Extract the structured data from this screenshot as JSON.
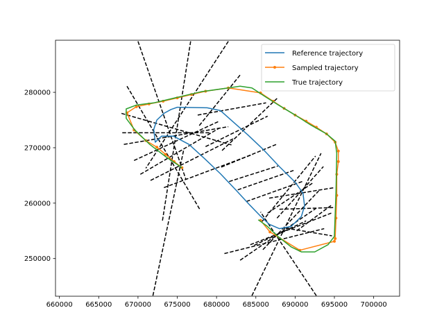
{
  "chart_data": {
    "type": "line",
    "title": "",
    "xlabel": "",
    "ylabel": "",
    "xlim": [
      659500,
      703300
    ],
    "ylim": [
      243200,
      289400
    ],
    "xticks": [
      660000,
      665000,
      670000,
      675000,
      680000,
      685000,
      690000,
      695000,
      700000
    ],
    "yticks": [
      250000,
      260000,
      270000,
      280000
    ],
    "grid": false,
    "legend_position": "top-right",
    "series": [
      {
        "name": "Reference trajectory",
        "color": "#1f77b4",
        "marker": "none",
        "closed": true,
        "x": [
          675000,
          678800,
          680500,
          682000,
          684000,
          686000,
          688000,
          690000,
          691000,
          691200,
          690800,
          689500,
          688000,
          686700,
          685500,
          684200,
          682500,
          680500,
          678500,
          676500,
          674500,
          673000,
          672200,
          672000,
          672400,
          673300,
          674200,
          675000
        ],
        "y": [
          277300,
          277200,
          276700,
          274800,
          272300,
          269600,
          266600,
          263800,
          261800,
          259500,
          257600,
          255800,
          255400,
          256200,
          257800,
          259700,
          262300,
          265300,
          268000,
          270600,
          272100,
          272100,
          271000,
          273300,
          275000,
          276200,
          276900,
          277300
        ]
      },
      {
        "name": "Sampled trajectory",
        "color": "#ff7f0e",
        "marker": "circle",
        "x": [
          675600,
          674600,
          673500,
          672400,
          671000,
          669500,
          668600,
          669800,
          671400,
          673200,
          675000,
          676800,
          678600,
          681500,
          685600,
          687200,
          688600,
          690000,
          691400,
          692700,
          694000,
          695100,
          695500,
          695500,
          695300,
          695300,
          695200,
          695100,
          695000,
          690600,
          686800,
          685600
        ],
        "y": [
          266400,
          267500,
          268800,
          270100,
          271300,
          273200,
          276300,
          277400,
          277900,
          278400,
          279000,
          279600,
          280200,
          280800,
          279900,
          278400,
          277100,
          275900,
          274800,
          273700,
          272500,
          271000,
          269400,
          267500,
          265200,
          261400,
          257300,
          253600,
          253100,
          251500,
          254800,
          256900
        ]
      },
      {
        "name": "True trajectory",
        "color": "#2ca02c",
        "marker": "none",
        "x": [
          675600,
          673600,
          671500,
          669600,
          668500,
          668500,
          669800,
          672000,
          675000,
          678000,
          681500,
          683000,
          684500,
          686000,
          688000,
          690000,
          692000,
          694000,
          695100,
          695300,
          695200,
          695000,
          694200,
          692500,
          690800,
          689500,
          687800,
          686400,
          685300
        ],
        "y": [
          266400,
          268300,
          270600,
          273200,
          275300,
          277000,
          277700,
          278100,
          279100,
          280100,
          280800,
          281100,
          280800,
          279400,
          277600,
          275900,
          274100,
          272500,
          271200,
          269000,
          262000,
          254000,
          252500,
          251200,
          251200,
          252100,
          254000,
          255900,
          257000
        ]
      }
    ],
    "dashed_lines": [
      [
        [
          668600,
          281100
        ],
        [
          677900,
          258800
        ]
      ],
      [
        [
          667900,
          276200
        ],
        [
          681900,
          270500
        ]
      ],
      [
        [
          668000,
          272700
        ],
        [
          679200,
          272700
        ]
      ],
      [
        [
          668200,
          270600
        ],
        [
          681500,
          273800
        ]
      ],
      [
        [
          669500,
          267700
        ],
        [
          680200,
          274700
        ]
      ],
      [
        [
          670300,
          265200
        ],
        [
          680300,
          273500
        ]
      ],
      [
        [
          671600,
          264100
        ],
        [
          682100,
          271600
        ]
      ],
      [
        [
          673300,
          262800
        ],
        [
          684600,
          268800
        ]
      ],
      [
        [
          670000,
          289200
        ],
        [
          676100,
          264300
        ]
      ],
      [
        [
          676700,
          289200
        ],
        [
          673100,
          256700
        ]
      ],
      [
        [
          681500,
          289200
        ],
        [
          671000,
          266300
        ]
      ],
      [
        [
          671900,
          243300
        ],
        [
          675800,
          269500
        ]
      ],
      [
        [
          677600,
          275900
        ],
        [
          686300,
          278100
        ]
      ],
      [
        [
          677800,
          274000
        ],
        [
          683100,
          283300
        ]
      ],
      [
        [
          678600,
          270200
        ],
        [
          686500,
          275700
        ]
      ],
      [
        [
          680700,
          269500
        ],
        [
          687700,
          278900
        ]
      ],
      [
        [
          680600,
          266500
        ],
        [
          687600,
          270600
        ]
      ],
      [
        [
          681600,
          263900
        ],
        [
          687800,
          266700
        ]
      ],
      [
        [
          682700,
          262400
        ],
        [
          689800,
          265900
        ]
      ],
      [
        [
          683800,
          260300
        ],
        [
          690900,
          263900
        ]
      ],
      [
        [
          685800,
          256700
        ],
        [
          692600,
          268500
        ]
      ],
      [
        [
          686500,
          258200
        ],
        [
          692200,
          263600
        ]
      ],
      [
        [
          687700,
          257300
        ],
        [
          693600,
          266600
        ]
      ],
      [
        [
          688800,
          255500
        ],
        [
          694700,
          254100
        ]
      ],
      [
        [
          690200,
          255000
        ],
        [
          694600,
          259600
        ]
      ],
      [
        [
          684300,
          252500
        ],
        [
          694600,
          258200
        ]
      ],
      [
        [
          685900,
          251600
        ],
        [
          693000,
          262200
        ]
      ],
      [
        [
          684800,
          252400
        ],
        [
          691400,
          256800
        ]
      ],
      [
        [
          683000,
          249700
        ],
        [
          692700,
          259100
        ]
      ],
      [
        [
          681000,
          250900
        ],
        [
          693700,
          255400
        ]
      ],
      [
        [
          684500,
          243300
        ],
        [
          693300,
          269000
        ]
      ],
      [
        [
          692700,
          243300
        ],
        [
          685600,
          258400
        ]
      ],
      [
        [
          688000,
          258900
        ],
        [
          694900,
          259200
        ]
      ],
      [
        [
          686700,
          260900
        ],
        [
          695000,
          262800
        ]
      ]
    ]
  }
}
